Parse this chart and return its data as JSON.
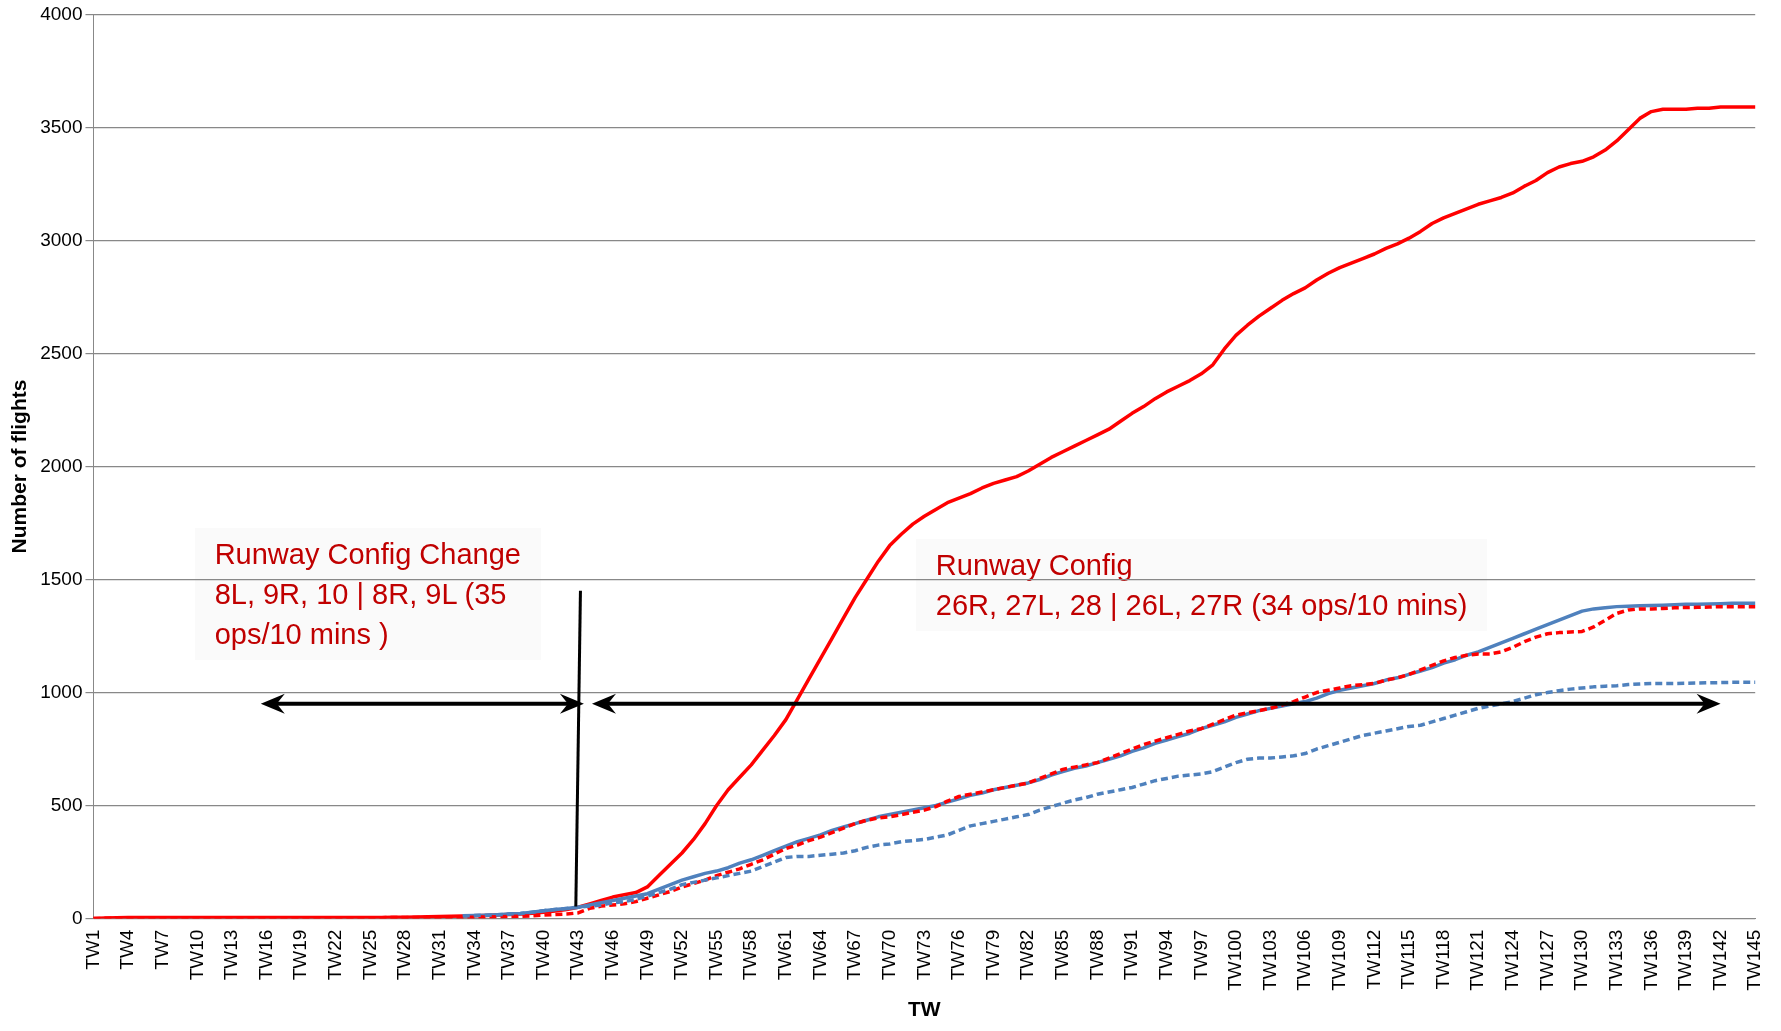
{
  "chart_data": {
    "type": "line",
    "xlabel": "TW",
    "ylabel": "Number of flights",
    "categories": [
      "TW1",
      null,
      null,
      "TW4",
      null,
      null,
      "TW7",
      null,
      null,
      "TW10",
      null,
      null,
      "TW13",
      null,
      null,
      "TW16",
      null,
      null,
      "TW19",
      null,
      null,
      "TW22",
      null,
      null,
      "TW25",
      null,
      null,
      "TW28",
      null,
      null,
      "TW31",
      null,
      null,
      "TW34",
      null,
      null,
      "TW37",
      null,
      null,
      "TW40",
      null,
      null,
      "TW43",
      null,
      null,
      "TW46",
      null,
      null,
      "TW49",
      null,
      null,
      "TW52",
      null,
      null,
      "TW55",
      null,
      null,
      "TW58",
      null,
      null,
      "TW61",
      null,
      null,
      "TW64",
      null,
      null,
      "TW67",
      null,
      null,
      "TW70",
      null,
      null,
      "TW73",
      null,
      null,
      "TW76",
      null,
      null,
      "TW79",
      null,
      null,
      "TW82",
      null,
      null,
      "TW85",
      null,
      null,
      "TW88",
      null,
      null,
      "TW91",
      null,
      null,
      "TW94",
      null,
      null,
      "TW97",
      null,
      null,
      "TW100",
      null,
      null,
      "TW103",
      null,
      null,
      "TW106",
      null,
      null,
      "TW109",
      null,
      null,
      "TW112",
      null,
      null,
      "TW115",
      null,
      null,
      "TW118",
      null,
      null,
      "TW121",
      null,
      null,
      "TW124",
      null,
      null,
      "TW127",
      null,
      null,
      "TW130",
      null,
      null,
      "TW133",
      null,
      null,
      "TW136",
      null,
      null,
      "TW139",
      null,
      null,
      "TW142",
      null,
      null,
      "TW145"
    ],
    "series": [
      {
        "color": "#ff0000",
        "line_style": "solid",
        "values": [
          0,
          3,
          4,
          5,
          5,
          5,
          5,
          5,
          5,
          5,
          5,
          5,
          5,
          5,
          5,
          5,
          5,
          5,
          5,
          5,
          5,
          5,
          5,
          5,
          5,
          5,
          6,
          6,
          7,
          8,
          9,
          10,
          11,
          12,
          14,
          16,
          18,
          20,
          24,
          28,
          33,
          40,
          50,
          65,
          80,
          95,
          105,
          115,
          140,
          190,
          240,
          290,
          350,
          420,
          500,
          570,
          625,
          680,
          745,
          810,
          880,
          970,
          1060,
          1150,
          1240,
          1330,
          1420,
          1500,
          1580,
          1650,
          1700,
          1745,
          1780,
          1810,
          1840,
          1860,
          1880,
          1905,
          1925,
          1940,
          1955,
          1980,
          2010,
          2040,
          2065,
          2090,
          2115,
          2140,
          2165,
          2200,
          2235,
          2265,
          2300,
          2330,
          2355,
          2380,
          2410,
          2450,
          2520,
          2580,
          2625,
          2665,
          2700,
          2735,
          2765,
          2790,
          2825,
          2855,
          2880,
          2900,
          2920,
          2940,
          2965,
          2985,
          3010,
          3040,
          3075,
          3100,
          3120,
          3140,
          3160,
          3175,
          3190,
          3210,
          3240,
          3265,
          3300,
          3325,
          3340,
          3350,
          3370,
          3400,
          3440,
          3490,
          3540,
          3570,
          3580,
          3580,
          3580,
          3585,
          3585,
          3590,
          3590,
          3590,
          3590
        ]
      },
      {
        "color": "#4f81bd",
        "line_style": "solid",
        "values": [
          null,
          null,
          null,
          null,
          null,
          null,
          null,
          null,
          null,
          null,
          null,
          null,
          null,
          null,
          null,
          null,
          null,
          null,
          null,
          null,
          null,
          null,
          null,
          null,
          null,
          null,
          null,
          null,
          null,
          null,
          null,
          null,
          12,
          13,
          15,
          17,
          20,
          22,
          28,
          35,
          40,
          45,
          50,
          60,
          70,
          80,
          90,
          100,
          110,
          130,
          150,
          170,
          185,
          200,
          210,
          225,
          245,
          260,
          280,
          300,
          320,
          340,
          355,
          370,
          390,
          405,
          420,
          435,
          450,
          460,
          470,
          480,
          490,
          500,
          515,
          530,
          545,
          555,
          570,
          580,
          590,
          600,
          615,
          635,
          650,
          665,
          675,
          690,
          705,
          720,
          740,
          755,
          775,
          790,
          805,
          820,
          840,
          855,
          870,
          890,
          905,
          920,
          930,
          940,
          950,
          960,
          975,
          995,
          1010,
          1020,
          1030,
          1040,
          1055,
          1065,
          1080,
          1095,
          1110,
          1130,
          1145,
          1165,
          1180,
          1200,
          1220,
          1240,
          1260,
          1280,
          1300,
          1320,
          1340,
          1360,
          1370,
          1375,
          1380,
          1382,
          1384,
          1385,
          1386,
          1388,
          1390,
          1391,
          1392,
          1393,
          1395,
          1395,
          1395
        ]
      },
      {
        "color": "#ff0000",
        "line_style": "dashed",
        "values": [
          0,
          1,
          1,
          1,
          2,
          2,
          2,
          2,
          2,
          2,
          3,
          3,
          3,
          3,
          3,
          3,
          3,
          3,
          3,
          3,
          4,
          4,
          4,
          4,
          4,
          4,
          5,
          5,
          5,
          5,
          5,
          5,
          6,
          6,
          7,
          8,
          9,
          10,
          12,
          15,
          18,
          20,
          25,
          45,
          55,
          60,
          65,
          75,
          90,
          105,
          120,
          140,
          155,
          170,
          190,
          205,
          220,
          240,
          260,
          285,
          310,
          325,
          345,
          360,
          380,
          400,
          420,
          435,
          445,
          450,
          460,
          470,
          480,
          495,
          520,
          540,
          550,
          560,
          570,
          580,
          590,
          600,
          620,
          640,
          660,
          670,
          680,
          690,
          710,
          730,
          750,
          770,
          785,
          800,
          815,
          830,
          840,
          860,
          880,
          900,
          910,
          920,
          930,
          945,
          960,
          980,
          1000,
          1010,
          1020,
          1030,
          1035,
          1040,
          1055,
          1065,
          1080,
          1100,
          1120,
          1140,
          1155,
          1165,
          1170,
          1170,
          1180,
          1200,
          1225,
          1245,
          1260,
          1265,
          1268,
          1270,
          1290,
          1320,
          1350,
          1365,
          1370,
          1370,
          1372,
          1375,
          1376,
          1377,
          1378,
          1380,
          1380,
          1380,
          1380
        ]
      },
      {
        "color": "#4f81bd",
        "line_style": "dashed",
        "values": [
          null,
          null,
          null,
          null,
          null,
          null,
          null,
          null,
          null,
          null,
          null,
          null,
          null,
          null,
          null,
          null,
          null,
          null,
          null,
          null,
          null,
          null,
          null,
          null,
          null,
          null,
          null,
          null,
          null,
          null,
          null,
          null,
          12,
          13,
          15,
          17,
          20,
          22,
          28,
          35,
          40,
          45,
          50,
          55,
          60,
          70,
          75,
          85,
          100,
          115,
          130,
          150,
          160,
          170,
          180,
          190,
          200,
          210,
          230,
          250,
          270,
          275,
          275,
          280,
          285,
          290,
          300,
          315,
          325,
          330,
          340,
          345,
          350,
          360,
          370,
          390,
          410,
          420,
          430,
          440,
          450,
          460,
          480,
          495,
          510,
          525,
          535,
          550,
          560,
          570,
          580,
          595,
          610,
          620,
          630,
          635,
          640,
          650,
          670,
          690,
          705,
          710,
          710,
          715,
          720,
          730,
          750,
          765,
          780,
          795,
          810,
          820,
          830,
          840,
          850,
          855,
          870,
          885,
          900,
          915,
          930,
          940,
          950,
          960,
          975,
          990,
          1000,
          1008,
          1015,
          1020,
          1025,
          1028,
          1030,
          1035,
          1038,
          1040,
          1040,
          1040,
          1041,
          1042,
          1043,
          1044,
          1045,
          1045,
          1045
        ]
      }
    ],
    "ylim": [
      0,
      4000
    ],
    "yticks": [
      0,
      500,
      1000,
      1500,
      2000,
      2500,
      3000,
      3500,
      4000
    ],
    "grid": "y",
    "legend": false,
    "marker": "none",
    "annotations": [
      "Runway Config Change\n8L, 9R, 10 | 8R, 9L  (35\nops/10 mins )",
      "Runway Config\n26R, 27L, 28 | 26L, 27R (34 ops/10 mins)"
    ]
  }
}
